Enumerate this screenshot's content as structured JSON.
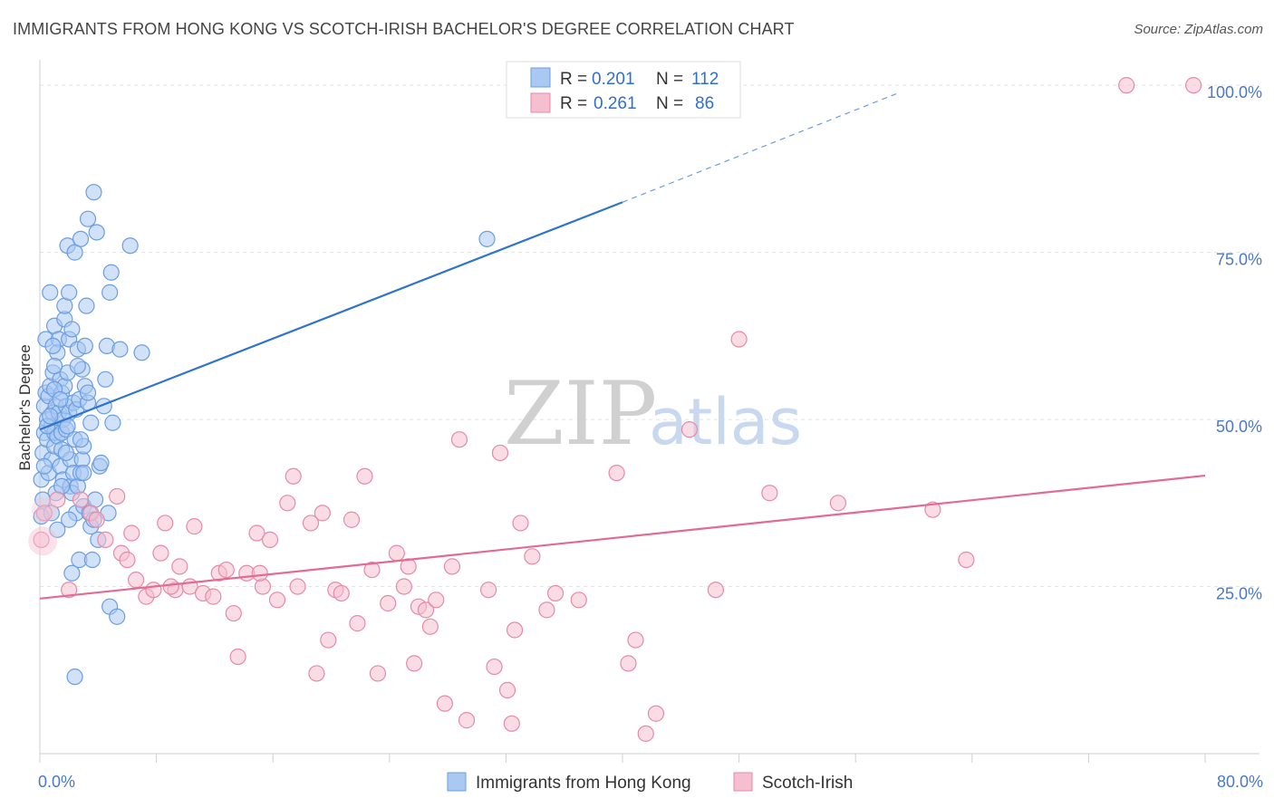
{
  "title": "IMMIGRANTS FROM HONG KONG VS SCOTCH-IRISH BACHELOR'S DEGREE CORRELATION CHART",
  "source": "Source: ZipAtlas.com",
  "watermark": {
    "zip": "ZIP",
    "atlas": "atlas"
  },
  "legend": {
    "r_label": "R =",
    "n_label": "N =",
    "rows": [
      {
        "r": "0.201",
        "n": "112",
        "color": "#a9c8f2",
        "stroke": "#6b9ee0"
      },
      {
        "r": "0.261",
        "n": "86",
        "color": "#f6bfd0",
        "stroke": "#e68aa8"
      }
    ]
  },
  "bottom_legend": [
    {
      "label": "Immigrants from Hong Kong",
      "color": "#a9c8f2",
      "stroke": "#6b9ee0"
    },
    {
      "label": "Scotch-Irish",
      "color": "#f6bfd0",
      "stroke": "#e68aa8"
    }
  ],
  "chart_data": {
    "type": "scatter",
    "title": "IMMIGRANTS FROM HONG KONG VS SCOTCH-IRISH BACHELOR'S DEGREE CORRELATION CHART",
    "xlabel": "",
    "ylabel": "Bachelor's Degree",
    "xlim": [
      0,
      80
    ],
    "ylim": [
      0,
      103
    ],
    "x_tick_labels": [
      {
        "value": 0,
        "label": "0.0%"
      },
      {
        "value": 80,
        "label": "80.0%"
      }
    ],
    "y_tick_labels": [
      {
        "value": 25,
        "label": "25.0%"
      },
      {
        "value": 50,
        "label": "50.0%"
      },
      {
        "value": 75,
        "label": "75.0%"
      },
      {
        "value": 100,
        "label": "100.0%"
      }
    ],
    "x_minor_ticks": [
      0,
      8,
      16,
      24,
      32,
      40,
      48,
      56,
      64,
      72,
      80
    ],
    "series": [
      {
        "name": "Immigrants from Hong Kong",
        "color": "#a9c8f2",
        "stroke": "#6b9ee0",
        "trend": {
          "x0": 0,
          "y0": 48.5,
          "x1": 40,
          "y1": 82.5,
          "dash_to_x": 59,
          "dash_to_y": 98.9,
          "color": "#2f74cc"
        },
        "points": [
          [
            0.1,
            35.5
          ],
          [
            0.1,
            41
          ],
          [
            0.2,
            45
          ],
          [
            0.3,
            48
          ],
          [
            0.3,
            52
          ],
          [
            0.4,
            54
          ],
          [
            0.4,
            62
          ],
          [
            0.5,
            47
          ],
          [
            0.5,
            50
          ],
          [
            0.6,
            53.5
          ],
          [
            0.6,
            42
          ],
          [
            0.7,
            55
          ],
          [
            0.7,
            69
          ],
          [
            0.8,
            44
          ],
          [
            0.8,
            49
          ],
          [
            0.9,
            51
          ],
          [
            0.9,
            57
          ],
          [
            1.0,
            46
          ],
          [
            1.0,
            48
          ],
          [
            1.0,
            64
          ],
          [
            1.1,
            52
          ],
          [
            1.1,
            39
          ],
          [
            1.2,
            33.5
          ],
          [
            1.2,
            47.5
          ],
          [
            1.3,
            62
          ],
          [
            1.3,
            51
          ],
          [
            1.4,
            56
          ],
          [
            1.4,
            43
          ],
          [
            1.5,
            48
          ],
          [
            1.5,
            45.5
          ],
          [
            1.5,
            54
          ],
          [
            1.6,
            50
          ],
          [
            1.6,
            41
          ],
          [
            1.7,
            65
          ],
          [
            1.7,
            55
          ],
          [
            1.7,
            67
          ],
          [
            1.8,
            52
          ],
          [
            1.8,
            48.5
          ],
          [
            1.9,
            76
          ],
          [
            1.9,
            57
          ],
          [
            2.0,
            62
          ],
          [
            2.0,
            69
          ],
          [
            2.0,
            51
          ],
          [
            2.1,
            44
          ],
          [
            2.1,
            40
          ],
          [
            2.2,
            39
          ],
          [
            2.2,
            63.5
          ],
          [
            2.2,
            27
          ],
          [
            2.3,
            42
          ],
          [
            2.3,
            52.5
          ],
          [
            2.4,
            47
          ],
          [
            2.4,
            75
          ],
          [
            2.5,
            36
          ],
          [
            2.5,
            51.5
          ],
          [
            2.6,
            40
          ],
          [
            2.6,
            60.5
          ],
          [
            2.7,
            29
          ],
          [
            2.7,
            53
          ],
          [
            2.8,
            42
          ],
          [
            2.8,
            77
          ],
          [
            2.9,
            44
          ],
          [
            2.9,
            57.5
          ],
          [
            3.0,
            42
          ],
          [
            3.0,
            37
          ],
          [
            3.1,
            61
          ],
          [
            3.1,
            55
          ],
          [
            3.2,
            67
          ],
          [
            3.3,
            52.5
          ],
          [
            3.3,
            80
          ],
          [
            3.4,
            36
          ],
          [
            3.5,
            34
          ],
          [
            3.5,
            49.5
          ],
          [
            3.6,
            29
          ],
          [
            3.7,
            35
          ],
          [
            3.7,
            84
          ],
          [
            3.8,
            38
          ],
          [
            3.9,
            78
          ],
          [
            4.0,
            32
          ],
          [
            4.1,
            43
          ],
          [
            4.2,
            43.5
          ],
          [
            4.4,
            52
          ],
          [
            4.5,
            56
          ],
          [
            4.6,
            61
          ],
          [
            4.7,
            36
          ],
          [
            4.8,
            69
          ],
          [
            4.8,
            22
          ],
          [
            4.9,
            72
          ],
          [
            5.0,
            49.5
          ],
          [
            5.3,
            20.5
          ],
          [
            5.5,
            60.5
          ],
          [
            6.2,
            76
          ],
          [
            7.0,
            60
          ],
          [
            2.4,
            11.5
          ],
          [
            1.0,
            54.5
          ],
          [
            0.5,
            49
          ],
          [
            1.2,
            60
          ],
          [
            2.0,
            35
          ],
          [
            3.3,
            54
          ],
          [
            0.8,
            36
          ],
          [
            1.9,
            49
          ],
          [
            0.3,
            43
          ],
          [
            1.5,
            40
          ],
          [
            2.6,
            58
          ],
          [
            3.0,
            46
          ],
          [
            0.7,
            50.5
          ],
          [
            1.4,
            53
          ],
          [
            2.8,
            47
          ],
          [
            0.9,
            61
          ],
          [
            1.8,
            45
          ],
          [
            0.2,
            38
          ],
          [
            30.7,
            77
          ],
          [
            1.0,
            58
          ]
        ]
      },
      {
        "name": "Scotch-Irish",
        "color": "#f6bfd0",
        "stroke": "#e68aa8",
        "trend": {
          "x0": 0,
          "y0": 23.2,
          "x1": 80,
          "y1": 41.6,
          "color": "#e26a93"
        },
        "points": [
          [
            0.1,
            32
          ],
          [
            0.3,
            36
          ],
          [
            1.2,
            38
          ],
          [
            2.8,
            38
          ],
          [
            3.5,
            36
          ],
          [
            4.5,
            32
          ],
          [
            5.3,
            38.5
          ],
          [
            5.6,
            30
          ],
          [
            6.3,
            33
          ],
          [
            6.6,
            26
          ],
          [
            7.3,
            23.5
          ],
          [
            7.8,
            24.5
          ],
          [
            8.3,
            30
          ],
          [
            8.6,
            34.5
          ],
          [
            9.3,
            24.5
          ],
          [
            9.6,
            28
          ],
          [
            10.3,
            25
          ],
          [
            10.6,
            34
          ],
          [
            11.2,
            24
          ],
          [
            11.9,
            23.5
          ],
          [
            12.3,
            27
          ],
          [
            12.8,
            27.5
          ],
          [
            13.3,
            21
          ],
          [
            13.6,
            14.5
          ],
          [
            14.2,
            27
          ],
          [
            14.9,
            33
          ],
          [
            15.3,
            25
          ],
          [
            15.8,
            32
          ],
          [
            16.3,
            23
          ],
          [
            17.0,
            37.5
          ],
          [
            17.4,
            41.5
          ],
          [
            17.7,
            25
          ],
          [
            18.6,
            34.5
          ],
          [
            19.0,
            12
          ],
          [
            19.4,
            36
          ],
          [
            19.8,
            17
          ],
          [
            20.3,
            24.5
          ],
          [
            20.7,
            24
          ],
          [
            21.4,
            35
          ],
          [
            21.8,
            19.5
          ],
          [
            22.3,
            41.5
          ],
          [
            22.8,
            27.5
          ],
          [
            23.2,
            12
          ],
          [
            23.9,
            22.5
          ],
          [
            24.5,
            30
          ],
          [
            25.0,
            25
          ],
          [
            25.3,
            28
          ],
          [
            25.7,
            13.5
          ],
          [
            26.0,
            22
          ],
          [
            26.5,
            21.5
          ],
          [
            26.8,
            19
          ],
          [
            27.2,
            23
          ],
          [
            27.8,
            7.5
          ],
          [
            28.3,
            28
          ],
          [
            28.8,
            47
          ],
          [
            29.3,
            5
          ],
          [
            30.8,
            24.5
          ],
          [
            31.2,
            13
          ],
          [
            31.6,
            45
          ],
          [
            32.1,
            9.5
          ],
          [
            32.4,
            4.5
          ],
          [
            32.6,
            18.5
          ],
          [
            33.0,
            34.5
          ],
          [
            33.8,
            29.5
          ],
          [
            34.8,
            21.5
          ],
          [
            35.4,
            24
          ],
          [
            37.0,
            23
          ],
          [
            39.6,
            42
          ],
          [
            40.4,
            13.5
          ],
          [
            40.9,
            17
          ],
          [
            41.6,
            3
          ],
          [
            42.3,
            6
          ],
          [
            44.6,
            48.5
          ],
          [
            46.4,
            24.5
          ],
          [
            48.0,
            62
          ],
          [
            50.1,
            39
          ],
          [
            54.8,
            37.5
          ],
          [
            61.3,
            36.5
          ],
          [
            63.6,
            29
          ],
          [
            74.6,
            100
          ],
          [
            79.2,
            100
          ],
          [
            2.0,
            24.5
          ],
          [
            3.9,
            35
          ],
          [
            6.0,
            29
          ],
          [
            9.0,
            25
          ],
          [
            15.1,
            27
          ]
        ]
      }
    ]
  }
}
